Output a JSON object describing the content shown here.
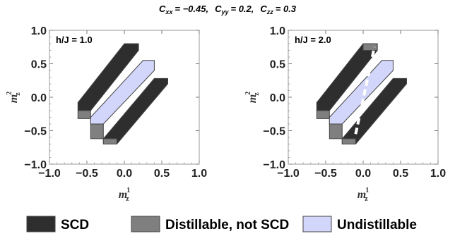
{
  "chart_data": {
    "type": "region-plot",
    "title": {
      "parts": [
        {
          "name": "C",
          "sub": "xx",
          "value": "= −0.45,"
        },
        {
          "name": "C",
          "sub": "yy",
          "value": "= 0.2,"
        },
        {
          "name": "C",
          "sub": "zz",
          "value": "= 0.3"
        }
      ]
    },
    "colors": {
      "SCD": "#2e2e2e",
      "Distillable, not SCD": "#7f7f7f",
      "Undistillable": "#d2d6fa",
      "guide_line": "#ffffff"
    },
    "legend": {
      "placement": "bottom",
      "items": [
        {
          "label": "SCD",
          "key": "SCD"
        },
        {
          "label": "Distillable, not SCD",
          "key": "Distillable, not SCD"
        },
        {
          "label": "Undistillable",
          "key": "Undistillable"
        }
      ]
    },
    "panels": [
      {
        "label": "h/J = 1.0",
        "xlabel": {
          "base": "m",
          "sub": "z",
          "sup": "1"
        },
        "ylabel": {
          "base": "m",
          "sub": "z",
          "sup": "2"
        },
        "xlim": [
          -1.0,
          1.0
        ],
        "ylim": [
          -1.0,
          1.0
        ],
        "xticks": [
          "−1.0",
          "−0.5",
          "0.0",
          "0.5",
          "1.0"
        ],
        "yticks": [
          "−1.0",
          "−0.5",
          "0.0",
          "0.5",
          "1.0"
        ],
        "xtick_values": [
          -1.0,
          -0.5,
          0.0,
          0.5,
          1.0
        ],
        "ytick_values": [
          -1.0,
          -0.5,
          0.0,
          0.5,
          1.0
        ],
        "regions": [
          {
            "class": "SCD",
            "polygon": [
              [
                -0.62,
                -0.2
              ],
              [
                -0.62,
                -0.08
              ],
              [
                0.0,
                0.8
              ],
              [
                0.19,
                0.8
              ],
              [
                0.19,
                0.7
              ],
              [
                -0.45,
                -0.2
              ]
            ]
          },
          {
            "class": "SCD",
            "polygon": [
              [
                -0.28,
                -0.7
              ],
              [
                -0.1,
                -0.7
              ],
              [
                0.58,
                0.2
              ],
              [
                0.58,
                0.28
              ],
              [
                0.4,
                0.28
              ],
              [
                -0.28,
                -0.62
              ]
            ]
          },
          {
            "class": "Distillable, not SCD",
            "polygon": [
              [
                -0.62,
                -0.2
              ],
              [
                -0.45,
                -0.2
              ],
              [
                -0.45,
                -0.32
              ],
              [
                -0.62,
                -0.32
              ]
            ]
          },
          {
            "class": "Distillable, not SCD",
            "polygon": [
              [
                -0.45,
                -0.32
              ],
              [
                -0.28,
                -0.32
              ],
              [
                -0.28,
                -0.62
              ],
              [
                -0.45,
                -0.62
              ]
            ]
          },
          {
            "class": "Distillable, not SCD",
            "polygon": [
              [
                -0.28,
                -0.62
              ],
              [
                -0.1,
                -0.62
              ],
              [
                -0.1,
                -0.7
              ],
              [
                -0.28,
                -0.7
              ]
            ]
          },
          {
            "class": "Undistillable",
            "polygon": [
              [
                -0.45,
                -0.4
              ],
              [
                -0.28,
                -0.4
              ],
              [
                0.4,
                0.4
              ],
              [
                0.4,
                0.55
              ],
              [
                0.25,
                0.55
              ],
              [
                -0.45,
                -0.3
              ]
            ]
          }
        ],
        "guide_line": null
      },
      {
        "label": "h/J = 2.0",
        "xlabel": {
          "base": "m",
          "sub": "z",
          "sup": "1"
        },
        "ylabel": {
          "base": "m",
          "sub": "z",
          "sup": "2"
        },
        "xlim": [
          -1.0,
          1.0
        ],
        "ylim": [
          -1.0,
          1.0
        ],
        "xticks": [
          "−1.0",
          "−0.5",
          "0.0",
          "0.5",
          "1.0"
        ],
        "yticks": [
          "−1.0",
          "−0.5",
          "0.0",
          "0.5",
          "1.0"
        ],
        "xtick_values": [
          -1.0,
          -0.5,
          0.0,
          0.5,
          1.0
        ],
        "ytick_values": [
          -1.0,
          -0.5,
          0.0,
          0.5,
          1.0
        ],
        "regions": [
          {
            "class": "SCD",
            "polygon": [
              [
                -0.62,
                -0.2
              ],
              [
                -0.62,
                -0.08
              ],
              [
                0.0,
                0.8
              ],
              [
                0.19,
                0.8
              ],
              [
                0.19,
                0.7
              ],
              [
                -0.45,
                -0.2
              ]
            ]
          },
          {
            "class": "SCD",
            "polygon": [
              [
                -0.28,
                -0.7
              ],
              [
                -0.1,
                -0.7
              ],
              [
                0.58,
                0.2
              ],
              [
                0.58,
                0.28
              ],
              [
                0.4,
                0.28
              ],
              [
                -0.28,
                -0.62
              ]
            ]
          },
          {
            "class": "Distillable, not SCD",
            "polygon": [
              [
                -0.62,
                -0.2
              ],
              [
                -0.45,
                -0.2
              ],
              [
                -0.45,
                -0.32
              ],
              [
                -0.62,
                -0.32
              ]
            ]
          },
          {
            "class": "Distillable, not SCD",
            "polygon": [
              [
                -0.45,
                -0.32
              ],
              [
                -0.28,
                -0.32
              ],
              [
                -0.28,
                -0.62
              ],
              [
                -0.45,
                -0.62
              ]
            ]
          },
          {
            "class": "Distillable, not SCD",
            "polygon": [
              [
                -0.28,
                -0.62
              ],
              [
                -0.1,
                -0.62
              ],
              [
                -0.1,
                -0.7
              ],
              [
                -0.28,
                -0.7
              ]
            ]
          },
          {
            "class": "Distillable, not SCD",
            "polygon": [
              [
                0.0,
                0.8
              ],
              [
                0.19,
                0.8
              ],
              [
                0.19,
                0.7
              ],
              [
                0.0,
                0.7
              ]
            ]
          },
          {
            "class": "Undistillable",
            "polygon": [
              [
                -0.45,
                -0.4
              ],
              [
                -0.28,
                -0.4
              ],
              [
                0.4,
                0.4
              ],
              [
                0.4,
                0.55
              ],
              [
                0.25,
                0.55
              ],
              [
                -0.45,
                -0.3
              ]
            ]
          }
        ],
        "guide_line": {
          "style": "dashed",
          "points": [
            [
              -0.1,
              -0.55
            ],
            [
              0.15,
              0.75
            ]
          ]
        }
      }
    ]
  }
}
